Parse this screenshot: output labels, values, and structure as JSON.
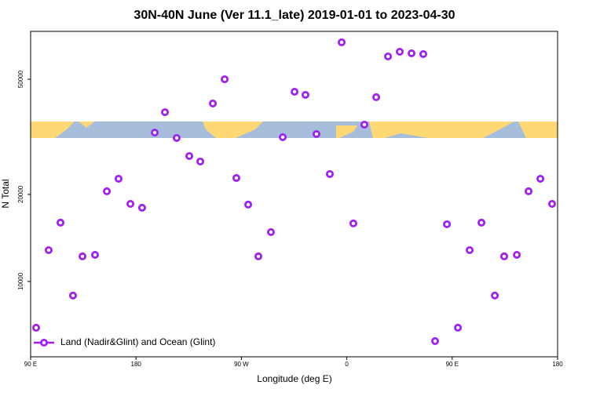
{
  "chart_data": {
    "type": "scatter",
    "title": "30N-40N June (Ver 11.1_late)   2019-01-01 to 2023-04-30",
    "x_label": "Longitude (deg E)",
    "y_label": "N Total",
    "xlim": [
      90,
      540
    ],
    "ylim": [
      5490,
      73200
    ],
    "y_scale": "log",
    "xticks": [
      {
        "value": 90,
        "label": "90 E"
      },
      {
        "value": 180,
        "label": "180"
      },
      {
        "value": 270,
        "label": "90 W"
      },
      {
        "value": 360,
        "label": "0"
      },
      {
        "value": 450,
        "label": "90 E"
      },
      {
        "value": 540,
        "label": "180"
      }
    ],
    "yticks": [
      10000,
      20000,
      50000
    ],
    "legend": "lower left",
    "series": [
      {
        "name": "Land (Nadir&Glint) and Ocean (Glint)",
        "color": "#a020f0",
        "x": [
          94.7,
          105.4,
          115.5,
          126.2,
          134.3,
          145,
          155.1,
          165.1,
          175.2,
          185.2,
          196,
          204.7,
          214.7,
          225.5,
          234.9,
          245.6,
          255.7,
          265.7,
          275.8,
          284.5,
          295.2,
          305.3,
          315.4,
          324.7,
          334.1,
          345.5,
          355.6,
          365.6,
          375,
          385.1,
          395.2,
          405.2,
          415.3,
          425.3,
          435.4,
          445.5,
          454.9,
          464.9,
          475,
          486.4,
          494.4,
          505.2,
          515.2,
          525.3,
          535.3
        ],
        "values": [
          6920,
          12830,
          15970,
          8940,
          12210,
          12360,
          20500,
          22650,
          18540,
          17980,
          32700,
          38470,
          31330,
          27140,
          25980,
          41230,
          50000,
          22790,
          18440,
          12210,
          14810,
          31520,
          45270,
          44160,
          32320,
          23510,
          67100,
          15870,
          34840,
          43350,
          59960,
          62230,
          61470,
          61090,
          6220,
          15770,
          6920,
          12830,
          15970,
          8940,
          12210,
          12360,
          20500,
          22650,
          18540
        ]
      }
    ]
  }
}
